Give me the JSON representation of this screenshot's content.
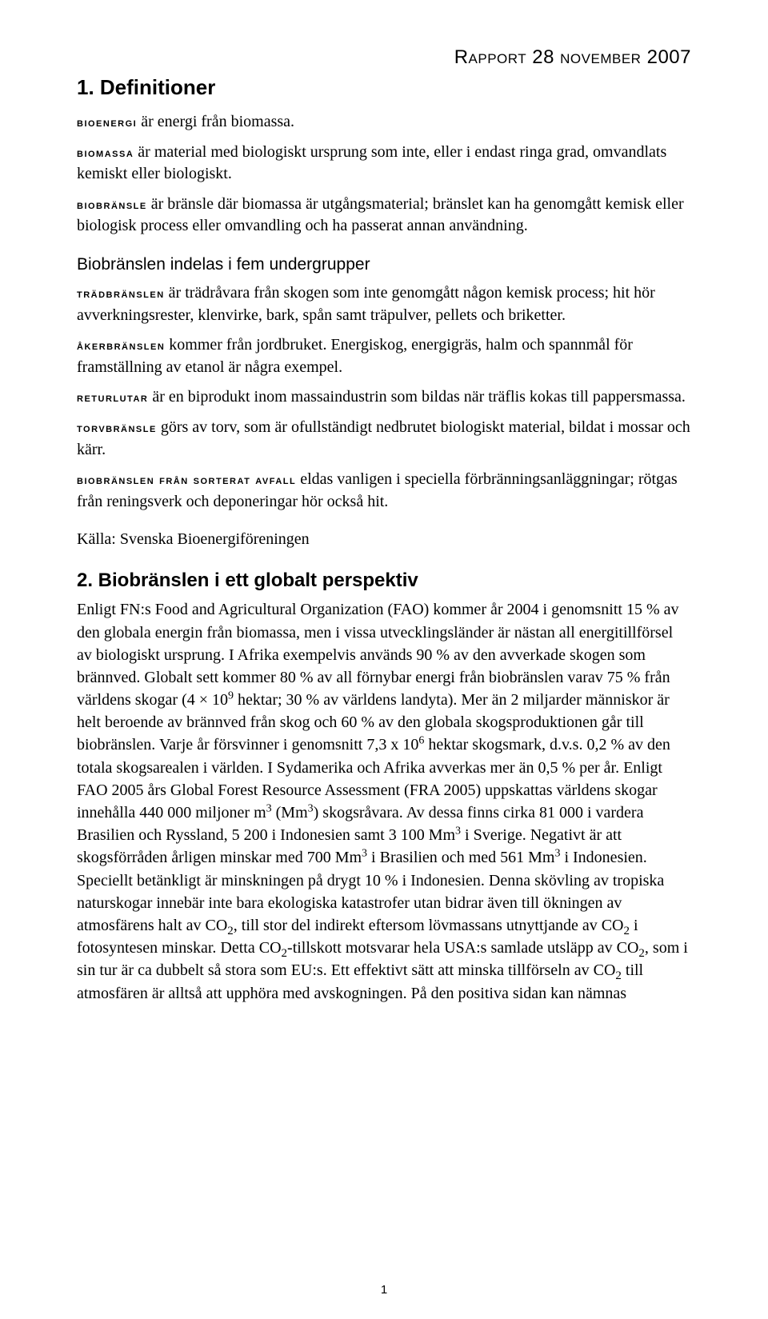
{
  "header": {
    "report_line": "Rapport 28 november 2007"
  },
  "section1": {
    "title": "1. Definitioner",
    "defs": {
      "bioenergi": {
        "term": "bioenergi",
        "text": " är energi från biomassa."
      },
      "biomassa": {
        "term": "biomassa",
        "text": " är material med biologiskt ursprung som inte, eller i endast ringa grad, omvandlats kemiskt eller biologiskt."
      },
      "biobransle": {
        "term": "biobränsle",
        "text": " är bränsle där biomassa är utgångsmaterial; bränslet kan ha genomgått kemisk eller biologisk process eller omvandling och ha passerat annan användning."
      }
    },
    "subhead": "Biobränslen indelas i fem undergrupper",
    "subs": {
      "trad": {
        "term": "trädbränslen",
        "text": " är trädråvara från skogen som inte genomgått någon kemisk process; hit hör avverkningsrester, klenvirke, bark, spån samt träpulver, pellets och briketter."
      },
      "aker": {
        "term": "åkerbränslen",
        "text": " kommer från jordbruket. Energiskog, energigräs, halm och spannmål för framställning av etanol är några exempel."
      },
      "retur": {
        "term": "returlutar",
        "text": " är en biprodukt inom massaindustrin som bildas när träflis kokas till pappersmassa."
      },
      "torv": {
        "term": "torvbränsle",
        "text": " görs av torv, som är ofullständigt nedbrutet biologiskt material, bildat i mossar och kärr."
      },
      "avfall": {
        "term": "biobränslen från sorterat avfall",
        "text": " eldas vanligen i speciella förbränningsanläggningar; rötgas från reningsverk och deponeringar hör också hit."
      }
    },
    "source": "Källa: Svenska Bioenergiföreningen"
  },
  "section2": {
    "title": "2. Biobränslen i ett globalt perspektiv",
    "body_html": "Enligt FN:s Food and Agricultural Organization (FAO) kommer år 2004 i genomsnitt 15 % av den globala energin från biomassa, men i vissa utvecklingsländer är nästan all energitillförsel av biologiskt ursprung. I Afrika exempelvis används 90 % av den avverkade skogen som brännved. Globalt sett kommer 80 % av all förnybar energi från biobränslen varav 75 % från världens skogar (4 × 10<sup>9</sup> hektar; 30 % av världens landyta). Mer än 2 miljarder människor är helt beroende av brännved från skog och 60 % av den globala skogsproduktionen går till biobränslen. Varje år försvinner i genomsnitt 7,3 x 10<sup>6</sup> hektar skogsmark, d.v.s. 0,2 % av den totala skogsarealen i världen. I Sydamerika och Afrika avverkas mer än 0,5 % per år. Enligt FAO 2005 års Global Forest Resource Assessment (FRA 2005) uppskattas världens skogar innehålla 440 000 miljoner m<sup>3</sup> (Mm<sup>3</sup>) skogsråvara. Av dessa finns cirka 81 000 i vardera Brasilien och Ryssland, 5 200 i Indonesien samt 3 100 Mm<sup>3</sup> i Sverige. Negativt är att skogsförråden årligen minskar med 700 Mm<sup>3</sup> i Brasilien och med 561 Mm<sup>3</sup> i Indonesien. Speciellt betänkligt är minskningen på drygt 10 % i Indonesien. Denna skövling av tropiska naturskogar innebär inte bara ekologiska katastrofer utan bidrar även till ökningen av atmosfärens halt av CO<sub>2</sub>, till stor del indirekt eftersom lövmassans utnyttjande av CO<sub>2</sub> i fotosyntesen minskar. Detta CO<sub>2</sub>-tillskott motsvarar hela USA:s samlade utsläpp av CO<sub>2</sub>, som i sin tur är ca dubbelt så stora som EU:s. Ett effektivt sätt att minska tillförseln av CO<sub>2</sub> till atmosfären är alltså att upphöra med avskogningen. På den positiva sidan kan nämnas"
  },
  "page_number": "1"
}
